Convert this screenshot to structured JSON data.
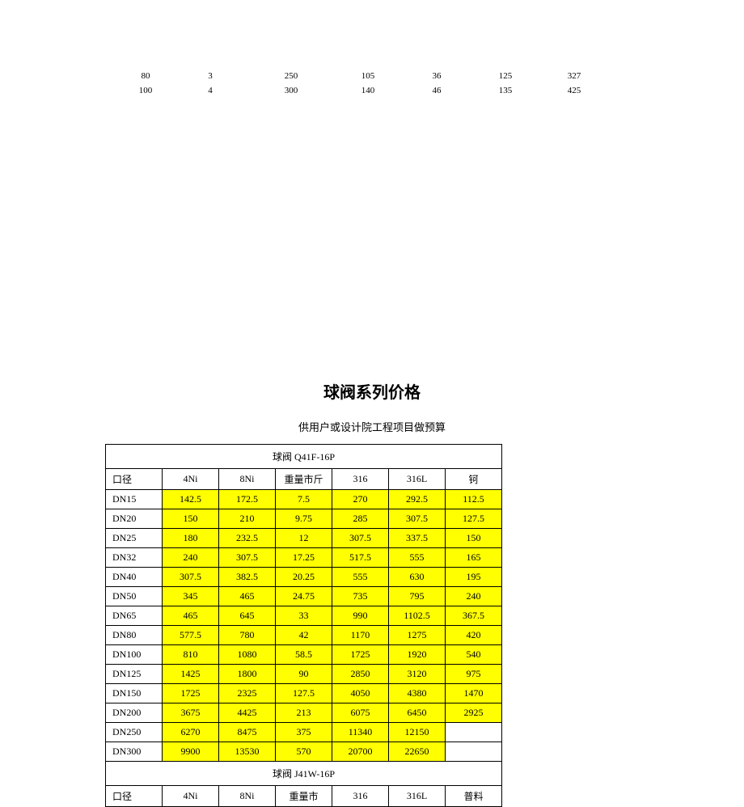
{
  "top_rows": [
    [
      "80",
      "3",
      "250",
      "105",
      "36",
      "125",
      "327"
    ],
    [
      "100",
      "4",
      "300",
      "140",
      "46",
      "135",
      "425"
    ]
  ],
  "main_title": "球阀系列价格",
  "sub_title": "供用户或设计院工程项目做预算",
  "section1_title": "球阀  Q41F-16P",
  "section2_title": "球阀  J41W-16P",
  "headers1": [
    "口径",
    "4Ni",
    "8Ni",
    "重量市斤",
    "316",
    "316L",
    "钶"
  ],
  "headers2": [
    "口径",
    "4Ni",
    "8Ni",
    "重量市",
    "316",
    "316L",
    "普料"
  ],
  "highlight_color": "#ffff00",
  "rows1": [
    {
      "dn": "DN15",
      "a": "142.5",
      "b": "172.5",
      "c": "7.5",
      "d": "270",
      "e": "292.5",
      "f": "112.5",
      "hl": true
    },
    {
      "dn": "DN20",
      "a": "150",
      "b": "210",
      "c": "9.75",
      "d": "285",
      "e": "307.5",
      "f": "127.5",
      "hl": true
    },
    {
      "dn": "DN25",
      "a": "180",
      "b": "232.5",
      "c": "12",
      "d": "307.5",
      "e": "337.5",
      "f": "150",
      "hl": true
    },
    {
      "dn": "DN32",
      "a": "240",
      "b": "307.5",
      "c": "17.25",
      "d": "517.5",
      "e": "555",
      "f": "165",
      "hl": true
    },
    {
      "dn": "DN40",
      "a": "307.5",
      "b": "382.5",
      "c": "20.25",
      "d": "555",
      "e": "630",
      "f": "195",
      "hl": true
    },
    {
      "dn": "DN50",
      "a": "345",
      "b": "465",
      "c": "24.75",
      "d": "735",
      "e": "795",
      "f": "240",
      "hl": true
    },
    {
      "dn": "DN65",
      "a": "465",
      "b": "645",
      "c": "33",
      "d": "990",
      "e": "1102.5",
      "f": "367.5",
      "hl": true
    },
    {
      "dn": "DN80",
      "a": "577.5",
      "b": "780",
      "c": "42",
      "d": "1170",
      "e": "1275",
      "f": "420",
      "hl": true
    },
    {
      "dn": "DN100",
      "a": "810",
      "b": "1080",
      "c": "58.5",
      "d": "1725",
      "e": "1920",
      "f": "540",
      "hl": true
    },
    {
      "dn": "DN125",
      "a": "1425",
      "b": "1800",
      "c": "90",
      "d": "2850",
      "e": "3120",
      "f": "975",
      "hl": true
    },
    {
      "dn": "DN150",
      "a": "1725",
      "b": "2325",
      "c": "127.5",
      "d": "4050",
      "e": "4380",
      "f": "1470",
      "hl": true
    },
    {
      "dn": "DN200",
      "a": "3675",
      "b": "4425",
      "c": "213",
      "d": "6075",
      "e": "6450",
      "f": "2925",
      "hl": true
    },
    {
      "dn": "DN250",
      "a": "6270",
      "b": "8475",
      "c": "375",
      "d": "11340",
      "e": "12150",
      "f": "",
      "hl": true
    },
    {
      "dn": "DN300",
      "a": "9900",
      "b": "13530",
      "c": "570",
      "d": "20700",
      "e": "22650",
      "f": "",
      "hl": true
    }
  ]
}
